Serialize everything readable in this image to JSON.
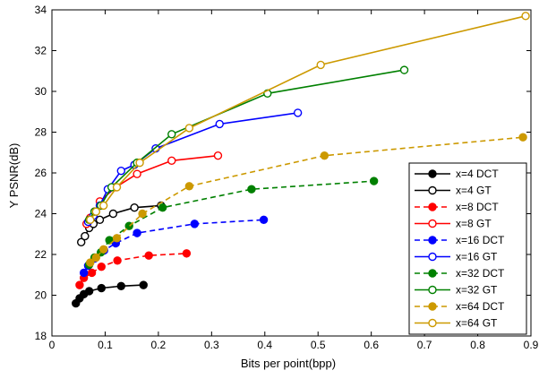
{
  "chart_data": {
    "type": "line",
    "title": "",
    "xlabel": "Bits per point(bpp)",
    "ylabel": "Y PSNR(dB)",
    "xlim": [
      0,
      0.9
    ],
    "ylim": [
      18,
      34
    ],
    "xticks": [
      "0",
      "0.1",
      "0.2",
      "0.3",
      "0.4",
      "0.5",
      "0.6",
      "0.7",
      "0.8",
      "0.9"
    ],
    "yticks": [
      "18",
      "20",
      "22",
      "24",
      "26",
      "28",
      "30",
      "32",
      "34"
    ],
    "grid": false,
    "legend_position": "bottom-right",
    "series": [
      {
        "name": "x=4 DCT",
        "color": "#000000",
        "dash": "solid",
        "marker": "filled",
        "x": [
          0.045,
          0.052,
          0.06,
          0.07,
          0.093,
          0.13,
          0.172
        ],
        "y": [
          19.6,
          19.85,
          20.05,
          20.2,
          20.35,
          20.45,
          20.5
        ]
      },
      {
        "name": "x=4 GT",
        "color": "#000000",
        "dash": "solid",
        "marker": "open",
        "x": [
          0.055,
          0.062,
          0.07,
          0.078,
          0.09,
          0.115,
          0.155,
          0.205
        ],
        "y": [
          22.6,
          22.9,
          23.3,
          23.5,
          23.7,
          24.0,
          24.3,
          24.4
        ]
      },
      {
        "name": "x=8 DCT",
        "color": "#ff0000",
        "dash": "dash",
        "marker": "filled",
        "x": [
          0.052,
          0.06,
          0.075,
          0.093,
          0.123,
          0.182,
          0.253
        ],
        "y": [
          20.5,
          20.85,
          21.1,
          21.4,
          21.7,
          21.95,
          22.05
        ]
      },
      {
        "name": "x=8 GT",
        "color": "#ff0000",
        "dash": "solid",
        "marker": "open",
        "x": [
          0.065,
          0.072,
          0.08,
          0.09,
          0.12,
          0.16,
          0.225,
          0.312
        ],
        "y": [
          23.5,
          23.8,
          24.1,
          24.6,
          25.3,
          25.95,
          26.6,
          26.85
        ]
      },
      {
        "name": "x=16 DCT",
        "color": "#0000ff",
        "dash": "dash",
        "marker": "filled",
        "x": [
          0.06,
          0.068,
          0.08,
          0.098,
          0.12,
          0.16,
          0.268,
          0.398
        ],
        "y": [
          21.1,
          21.45,
          21.8,
          22.2,
          22.55,
          23.05,
          23.5,
          23.7
        ]
      },
      {
        "name": "x=16 GT",
        "color": "#0000ff",
        "dash": "solid",
        "marker": "open",
        "x": [
          0.068,
          0.078,
          0.09,
          0.105,
          0.13,
          0.155,
          0.195,
          0.315,
          0.462
        ],
        "y": [
          23.6,
          23.9,
          24.4,
          25.2,
          26.1,
          26.4,
          27.2,
          28.4,
          28.95
        ]
      },
      {
        "name": "x=32 DCT",
        "color": "#008000",
        "dash": "dash",
        "marker": "filled",
        "x": [
          0.07,
          0.08,
          0.092,
          0.108,
          0.145,
          0.208,
          0.375,
          0.605
        ],
        "y": [
          21.5,
          21.85,
          22.1,
          22.7,
          23.4,
          24.3,
          25.2,
          25.6
        ]
      },
      {
        "name": "x=32 GT",
        "color": "#008000",
        "dash": "solid",
        "marker": "open",
        "x": [
          0.07,
          0.08,
          0.092,
          0.112,
          0.16,
          0.225,
          0.405,
          0.662
        ],
        "y": [
          23.7,
          24.1,
          24.4,
          25.3,
          26.5,
          27.9,
          29.9,
          31.05
        ]
      },
      {
        "name": "x=64 DCT",
        "color": "#cc9900",
        "dash": "dash",
        "marker": "filled",
        "x": [
          0.072,
          0.083,
          0.097,
          0.122,
          0.17,
          0.258,
          0.512,
          0.885
        ],
        "y": [
          21.6,
          21.85,
          22.25,
          22.8,
          24.0,
          25.35,
          26.85,
          27.75
        ]
      },
      {
        "name": "x=64 GT",
        "color": "#cc9900",
        "dash": "solid",
        "marker": "open",
        "x": [
          0.072,
          0.083,
          0.097,
          0.122,
          0.165,
          0.258,
          0.505,
          0.89
        ],
        "y": [
          23.7,
          24.1,
          24.4,
          25.3,
          26.5,
          28.2,
          31.3,
          33.7
        ]
      }
    ]
  }
}
